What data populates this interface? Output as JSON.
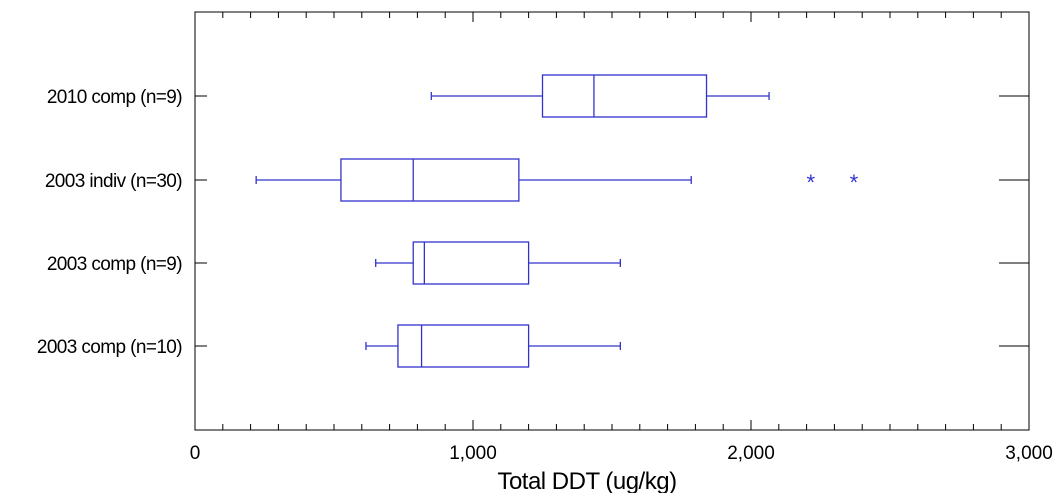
{
  "chart_data": {
    "type": "boxplot",
    "orientation": "horizontal",
    "title": "",
    "xlabel": "Total DDT  (ug/kg)",
    "ylabel": "",
    "xlim": [
      0,
      3000
    ],
    "x_ticks": [
      0,
      1000,
      2000,
      3000
    ],
    "x_tick_labels": [
      "0",
      "1,000",
      "2,000",
      "3,000"
    ],
    "grid": false,
    "series": [
      {
        "label": "2010 comp (n=9)",
        "whisker_low": 850,
        "q1": 1250,
        "median": 1435,
        "q3": 1840,
        "whisker_high": 2065,
        "outliers": []
      },
      {
        "label": "2003 indiv (n=30)",
        "whisker_low": 220,
        "q1": 525,
        "median": 785,
        "q3": 1165,
        "whisker_high": 1785,
        "outliers": [
          2215,
          2370
        ]
      },
      {
        "label": "2003 comp (n=9)",
        "whisker_low": 650,
        "q1": 785,
        "median": 825,
        "q3": 1200,
        "whisker_high": 1530,
        "outliers": []
      },
      {
        "label": "2003 comp (n=10)",
        "whisker_low": 615,
        "q1": 730,
        "median": 815,
        "q3": 1200,
        "whisker_high": 1530,
        "outliers": []
      }
    ],
    "colors": {
      "box": "#3333cc",
      "axis": "#000000"
    }
  }
}
